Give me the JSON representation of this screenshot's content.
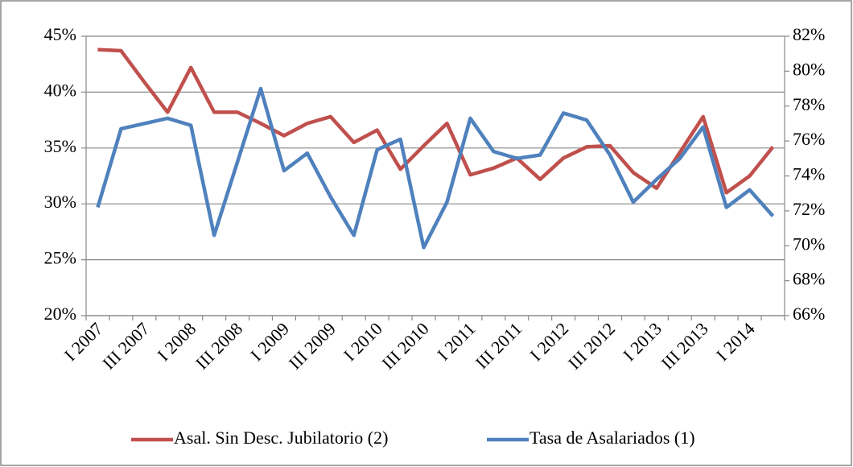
{
  "chart_data": {
    "type": "line",
    "categories": [
      "I 2007",
      null,
      "III 2007",
      null,
      "I 2008",
      null,
      "III 2008",
      null,
      "I 2009",
      null,
      "III 2009",
      null,
      "I 2010",
      null,
      "III 2010",
      null,
      "I 2011",
      null,
      "III 2011",
      null,
      "I 2012",
      null,
      "III 2012",
      null,
      "I 2013",
      null,
      "III 2013",
      null,
      "I 2014",
      null
    ],
    "series": [
      {
        "name": "Asal. Sin Desc. Jubilatorio (2)",
        "color": "#c0504d",
        "axis": "y",
        "values": [
          43.8,
          43.7,
          40.9,
          38.2,
          42.2,
          38.2,
          38.2,
          37.2,
          36.1,
          37.2,
          37.8,
          35.5,
          36.6,
          33.1,
          35.2,
          37.2,
          32.6,
          33.2,
          34.1,
          32.2,
          34.1,
          35.1,
          35.2,
          32.8,
          31.4,
          34.6,
          37.8,
          31.0,
          32.5,
          35.1
        ]
      },
      {
        "name": "Tasa de Asalariados (1)",
        "color": "#4f81bd",
        "axis": "y2",
        "values": [
          72.2,
          76.7,
          77.0,
          77.3,
          76.9,
          70.6,
          74.8,
          79.0,
          74.3,
          75.3,
          72.8,
          70.6,
          75.5,
          76.1,
          69.9,
          72.5,
          77.3,
          75.4,
          75.0,
          75.2,
          77.6,
          77.2,
          75.2,
          72.5,
          73.8,
          75.0,
          76.8,
          72.2,
          73.2,
          71.7
        ]
      }
    ],
    "ylim": [
      20,
      45
    ],
    "yticks": [
      {
        "value": 20,
        "label": "20%"
      },
      {
        "value": 25,
        "label": "25%"
      },
      {
        "value": 30,
        "label": "30%"
      },
      {
        "value": 35,
        "label": "35%"
      },
      {
        "value": 40,
        "label": "40%"
      },
      {
        "value": 45,
        "label": "45%"
      }
    ],
    "y2lim": [
      66,
      82
    ],
    "y2ticks": [
      {
        "value": 66,
        "label": "66%"
      },
      {
        "value": 68,
        "label": "68%"
      },
      {
        "value": 70,
        "label": "70%"
      },
      {
        "value": 72,
        "label": "72%"
      },
      {
        "value": 74,
        "label": "74%"
      },
      {
        "value": 76,
        "label": "76%"
      },
      {
        "value": 78,
        "label": "78%"
      },
      {
        "value": 80,
        "label": "80%"
      },
      {
        "value": 82,
        "label": "82%"
      }
    ],
    "grid": true,
    "legend": "bottom"
  }
}
